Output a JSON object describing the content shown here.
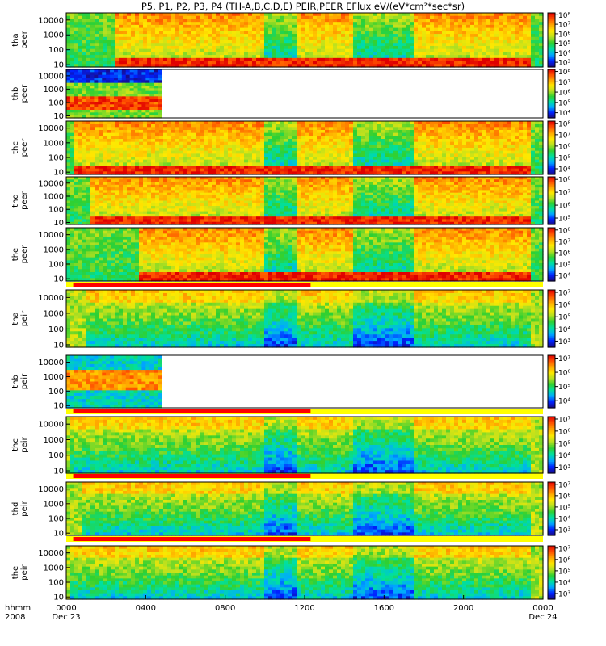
{
  "chart_data": {
    "type": "heatmap",
    "title": "P5, P1, P2, P3, P4 (TH-A,B,C,D,E) PEIR,PEER EFlux eV/(eV*cm²*sec*sr)",
    "x_axis": {
      "row_label_1": "hhmm",
      "row_label_2": "2008",
      "ticks": [
        "0000",
        "0400",
        "0800",
        "1200",
        "1600",
        "2000",
        "0000"
      ],
      "tick_hours": [
        0,
        4,
        8,
        12,
        16,
        20,
        24
      ],
      "date_labels": [
        "Dec 23",
        "Dec 24"
      ],
      "range_hours": [
        0,
        24
      ]
    },
    "y_axis": {
      "scale": "log",
      "range_eV": [
        7,
        30000
      ],
      "ticks": [
        "10000",
        "1000",
        "100",
        "10"
      ]
    },
    "colorbar": {
      "scale": "log",
      "palette": [
        "#1a0a80",
        "#0022ff",
        "#00aaff",
        "#00e0a0",
        "#30d030",
        "#b8e020",
        "#ffe800",
        "#ffa500",
        "#ff5000",
        "#e00000"
      ]
    },
    "panels": [
      {
        "probe": "tha",
        "species": "peer",
        "cb_ticks": [
          "10⁸",
          "10⁷",
          "10⁶",
          "10⁵",
          "10⁴",
          "10³"
        ],
        "cb_range_exp": [
          2.5,
          8.2
        ],
        "data_end_hour": 24,
        "bar_before": false
      },
      {
        "probe": "thb",
        "species": "peer",
        "cb_ticks": [
          "10⁸",
          "10⁷",
          "10⁶",
          "10⁵",
          "10⁴"
        ],
        "cb_range_exp": [
          3.5,
          8.2
        ],
        "data_end_hour": 4.8,
        "bar_before": false
      },
      {
        "probe": "thc",
        "species": "peer",
        "cb_ticks": [
          "10⁸",
          "10⁷",
          "10⁶",
          "10⁵",
          "10⁴"
        ],
        "cb_range_exp": [
          3.5,
          8.2
        ],
        "data_end_hour": 24,
        "bar_before": false
      },
      {
        "probe": "thd",
        "species": "peer",
        "cb_ticks": [
          "10⁸",
          "10⁷",
          "10⁶",
          "10⁵"
        ],
        "cb_range_exp": [
          4.5,
          8.2
        ],
        "data_end_hour": 24,
        "bar_before": false
      },
      {
        "probe": "the",
        "species": "peer",
        "cb_ticks": [
          "10⁸",
          "10⁷",
          "10⁶",
          "10⁵",
          "10⁴"
        ],
        "cb_range_exp": [
          3.5,
          8.2
        ],
        "data_end_hour": 24,
        "bar_before": false
      },
      {
        "probe": "tha",
        "species": "peir",
        "cb_ticks": [
          "10⁷",
          "10⁶",
          "10⁵",
          "10⁴",
          "10³"
        ],
        "cb_range_exp": [
          2.5,
          7.2
        ],
        "data_end_hour": 24,
        "bar_before": true
      },
      {
        "probe": "thb",
        "species": "peir",
        "cb_ticks": [
          "10⁷",
          "10⁶",
          "10⁵",
          "10⁴"
        ],
        "cb_range_exp": [
          3.5,
          7.2
        ],
        "data_end_hour": 4.8,
        "bar_before": false
      },
      {
        "probe": "thc",
        "species": "peir",
        "cb_ticks": [
          "10⁷",
          "10⁶",
          "10⁵",
          "10⁴",
          "10³"
        ],
        "cb_range_exp": [
          2.5,
          7.2
        ],
        "data_end_hour": 24,
        "bar_before": true
      },
      {
        "probe": "thd",
        "species": "peir",
        "cb_ticks": [
          "10⁷",
          "10⁶",
          "10⁵",
          "10⁴",
          "10³"
        ],
        "cb_range_exp": [
          2.5,
          7.2
        ],
        "data_end_hour": 24,
        "bar_before": true
      },
      {
        "probe": "the",
        "species": "peir",
        "cb_ticks": [
          "10⁷",
          "10⁶",
          "10⁵",
          "10⁴",
          "10³"
        ],
        "cb_range_exp": [
          2.5,
          7.2
        ],
        "data_end_hour": 24,
        "bar_before": true
      }
    ],
    "mode_bar": {
      "red_hours": [
        0.35,
        12.3
      ],
      "red_color": "#ff0000",
      "yellow_color": "#ffff00"
    }
  }
}
